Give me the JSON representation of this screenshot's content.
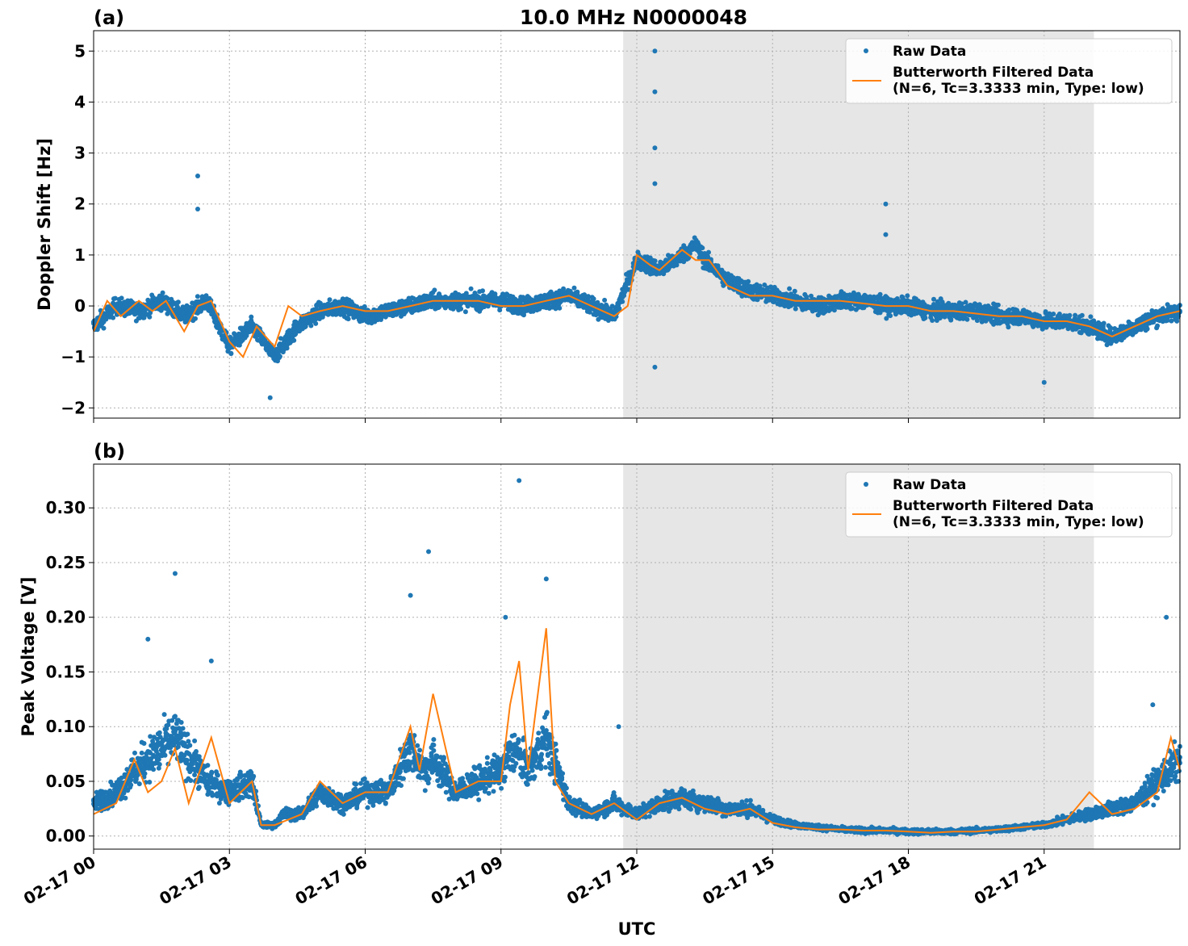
{
  "chart_data": [
    {
      "panel": "(a)",
      "title": "10.0 MHz N0000048",
      "type": "scatter+line",
      "xlabel": "",
      "ylabel": "Doppler Shift [Hz]",
      "ylim": [
        -2.2,
        5.4
      ],
      "yticks": [
        -2,
        -1,
        0,
        1,
        2,
        3,
        4,
        5
      ],
      "xlim_hours": [
        0,
        24
      ],
      "xticks_hours": [
        0,
        3,
        6,
        9,
        12,
        15,
        18,
        21
      ],
      "grid": true,
      "legend_position": "top-right",
      "legend": [
        "Raw Data",
        "Butterworth Filtered Data",
        "(N=6, Tc=3.3333 min, Type: low)"
      ],
      "shaded_span_hours": [
        11.7,
        22.1
      ],
      "series": [
        {
          "name": "Raw Data",
          "color": "#1f77b4",
          "x": [
            0,
            0.5,
            1,
            1.5,
            2,
            2.5,
            3,
            3.5,
            4,
            4.5,
            5,
            5.5,
            6,
            6.5,
            7,
            7.5,
            8,
            8.5,
            9,
            9.5,
            10,
            10.5,
            11,
            11.5,
            12,
            12.3,
            12.5,
            13,
            13.3,
            13.5,
            14,
            14.5,
            15,
            15.5,
            16,
            16.5,
            17,
            17.5,
            18,
            18.5,
            19,
            19.5,
            20,
            20.5,
            21,
            21.5,
            22,
            22.5,
            23,
            23.5,
            24
          ],
          "y": [
            -0.4,
            0.0,
            -0.1,
            0.1,
            -0.2,
            0.1,
            -0.8,
            -0.4,
            -1.0,
            -0.4,
            -0.1,
            0.0,
            -0.2,
            -0.1,
            0.0,
            0.1,
            0.1,
            0.1,
            0.1,
            0.0,
            0.1,
            0.2,
            0.0,
            -0.2,
            0.9,
            0.8,
            0.7,
            1.0,
            1.2,
            0.9,
            0.5,
            0.3,
            0.2,
            0.1,
            0.0,
            0.1,
            0.1,
            0.0,
            0.0,
            -0.1,
            -0.1,
            -0.1,
            -0.2,
            -0.2,
            -0.3,
            -0.3,
            -0.4,
            -0.6,
            -0.4,
            -0.2,
            -0.1
          ],
          "outliers": [
            [
              2.3,
              2.55
            ],
            [
              2.3,
              1.9
            ],
            [
              12.4,
              5.0
            ],
            [
              12.4,
              4.2
            ],
            [
              12.4,
              3.1
            ],
            [
              12.4,
              2.4
            ],
            [
              17.5,
              2.0
            ],
            [
              17.5,
              1.4
            ],
            [
              12.4,
              -1.2
            ],
            [
              3.9,
              -1.8
            ],
            [
              21.0,
              -1.5
            ]
          ]
        },
        {
          "name": "Butterworth Filtered Data",
          "color": "#ff7f0e",
          "x": [
            0,
            0.3,
            0.6,
            1,
            1.3,
            1.6,
            2,
            2.3,
            2.6,
            3,
            3.3,
            3.6,
            4,
            4.3,
            4.6,
            5,
            5.5,
            6,
            6.5,
            7,
            7.5,
            8,
            8.5,
            9,
            9.5,
            10,
            10.5,
            11,
            11.5,
            11.8,
            12,
            12.3,
            12.5,
            13,
            13.3,
            13.6,
            14,
            14.5,
            15,
            15.5,
            16,
            16.5,
            17,
            17.5,
            18,
            18.5,
            19,
            19.5,
            20,
            20.5,
            21,
            21.5,
            22,
            22.5,
            23,
            23.5,
            24
          ],
          "y": [
            -0.5,
            0.1,
            -0.2,
            0.1,
            -0.1,
            0.1,
            -0.5,
            0.0,
            0.1,
            -0.7,
            -1.0,
            -0.4,
            -0.8,
            0.0,
            -0.2,
            -0.1,
            0.0,
            -0.1,
            -0.1,
            0.0,
            0.1,
            0.1,
            0.1,
            0.0,
            0.0,
            0.1,
            0.2,
            0.0,
            -0.2,
            0.0,
            1.0,
            0.8,
            0.7,
            1.1,
            0.9,
            0.9,
            0.4,
            0.2,
            0.2,
            0.1,
            0.1,
            0.1,
            0.05,
            0.0,
            0.0,
            -0.1,
            -0.1,
            -0.15,
            -0.2,
            -0.2,
            -0.3,
            -0.3,
            -0.4,
            -0.6,
            -0.4,
            -0.2,
            -0.1
          ]
        }
      ]
    },
    {
      "panel": "(b)",
      "title": "",
      "type": "scatter+line",
      "xlabel": "UTC",
      "ylabel": "Peak Voltage [V]",
      "ylim": [
        -0.012,
        0.34
      ],
      "yticks": [
        0.0,
        0.05,
        0.1,
        0.15,
        0.2,
        0.25,
        0.3
      ],
      "ytick_labels": [
        "0.00",
        "0.05",
        "0.10",
        "0.15",
        "0.20",
        "0.25",
        "0.30"
      ],
      "xlim_hours": [
        0,
        24
      ],
      "xticks_hours": [
        0,
        3,
        6,
        9,
        12,
        15,
        18,
        21
      ],
      "xtick_labels": [
        "02-17 00",
        "02-17 03",
        "02-17 06",
        "02-17 09",
        "02-17 12",
        "02-17 15",
        "02-17 18",
        "02-17 21"
      ],
      "grid": true,
      "legend_position": "top-right",
      "legend": [
        "Raw Data",
        "Butterworth Filtered Data",
        "(N=6, Tc=3.3333 min, Type: low)"
      ],
      "shaded_span_hours": [
        11.7,
        22.1
      ],
      "series": [
        {
          "name": "Raw Data",
          "color": "#1f77b4",
          "x": [
            0,
            0.5,
            0.9,
            1.2,
            1.8,
            2.5,
            3.0,
            3.5,
            3.7,
            4.0,
            4.2,
            4.6,
            5.0,
            5.5,
            6.0,
            6.5,
            7.0,
            7.3,
            7.5,
            8.0,
            8.5,
            9.0,
            9.3,
            9.6,
            10.0,
            10.5,
            11.0,
            11.5,
            12.0,
            12.5,
            13.0,
            13.5,
            14.0,
            14.5,
            15.0,
            15.5,
            16.0,
            16.5,
            17.0,
            17.5,
            18.0,
            18.5,
            19.0,
            19.5,
            20.0,
            20.5,
            21.0,
            21.5,
            22.0,
            22.5,
            23.0,
            23.5,
            24.0
          ],
          "y": [
            0.03,
            0.04,
            0.06,
            0.07,
            0.09,
            0.05,
            0.04,
            0.05,
            0.01,
            0.01,
            0.02,
            0.02,
            0.04,
            0.03,
            0.04,
            0.04,
            0.08,
            0.06,
            0.07,
            0.04,
            0.05,
            0.06,
            0.08,
            0.06,
            0.09,
            0.03,
            0.02,
            0.03,
            0.02,
            0.03,
            0.035,
            0.03,
            0.025,
            0.025,
            0.015,
            0.01,
            0.008,
            0.006,
            0.005,
            0.005,
            0.004,
            0.004,
            0.004,
            0.005,
            0.006,
            0.008,
            0.01,
            0.015,
            0.02,
            0.025,
            0.03,
            0.05,
            0.07
          ],
          "outliers": [
            [
              1.8,
              0.24
            ],
            [
              1.2,
              0.18
            ],
            [
              2.6,
              0.16
            ],
            [
              7.0,
              0.22
            ],
            [
              7.4,
              0.26
            ],
            [
              9.4,
              0.325
            ],
            [
              9.1,
              0.2
            ],
            [
              10.0,
              0.235
            ],
            [
              11.6,
              0.1
            ],
            [
              23.7,
              0.2
            ],
            [
              23.4,
              0.12
            ]
          ]
        },
        {
          "name": "Butterworth Filtered Data",
          "color": "#ff7f0e",
          "x": [
            0,
            0.5,
            0.9,
            1.2,
            1.5,
            1.8,
            2.1,
            2.6,
            3.0,
            3.5,
            3.7,
            4.0,
            4.3,
            4.6,
            5.0,
            5.5,
            6.0,
            6.5,
            7.0,
            7.2,
            7.5,
            8.0,
            8.5,
            9.0,
            9.2,
            9.4,
            9.6,
            10.0,
            10.2,
            10.5,
            11.0,
            11.5,
            12.0,
            12.5,
            13.0,
            13.5,
            14.0,
            14.5,
            15.0,
            15.5,
            16.0,
            16.5,
            17.0,
            17.5,
            18.0,
            18.5,
            19.0,
            19.5,
            20.0,
            20.5,
            21.0,
            21.5,
            22.0,
            22.5,
            23.0,
            23.5,
            23.8,
            24.0
          ],
          "y": [
            0.02,
            0.03,
            0.07,
            0.04,
            0.05,
            0.08,
            0.03,
            0.09,
            0.03,
            0.05,
            0.01,
            0.01,
            0.015,
            0.02,
            0.05,
            0.03,
            0.04,
            0.04,
            0.1,
            0.06,
            0.13,
            0.04,
            0.05,
            0.05,
            0.12,
            0.16,
            0.06,
            0.19,
            0.05,
            0.03,
            0.02,
            0.03,
            0.015,
            0.03,
            0.035,
            0.025,
            0.02,
            0.025,
            0.012,
            0.008,
            0.006,
            0.006,
            0.005,
            0.005,
            0.004,
            0.003,
            0.004,
            0.004,
            0.006,
            0.008,
            0.01,
            0.015,
            0.04,
            0.02,
            0.025,
            0.04,
            0.09,
            0.06
          ]
        }
      ]
    }
  ]
}
